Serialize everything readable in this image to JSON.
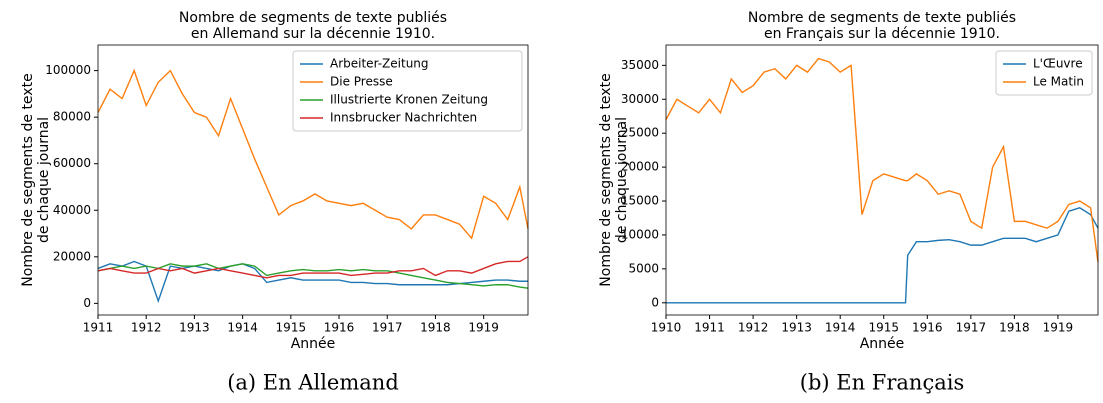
{
  "chart_data": [
    {
      "type": "line",
      "title": [
        "Nombre de segments de texte publiés",
        "en Allemand sur la décennie 1910."
      ],
      "xlabel": "Année",
      "ylabel": [
        "Nombre de segments de texte",
        "de chaque journal"
      ],
      "caption": "(a)  En Allemand",
      "x": [
        1911,
        1911.25,
        1911.5,
        1911.75,
        1912,
        1912.25,
        1912.5,
        1912.75,
        1913,
        1913.25,
        1913.5,
        1913.75,
        1914,
        1914.25,
        1914.5,
        1914.75,
        1915,
        1915.25,
        1915.5,
        1915.75,
        1916,
        1916.25,
        1916.5,
        1916.75,
        1917,
        1917.25,
        1917.5,
        1917.75,
        1918,
        1918.25,
        1918.5,
        1918.75,
        1919,
        1919.25,
        1919.5,
        1919.75,
        1919.92
      ],
      "series": [
        {
          "name": "Arbeiter-Zeitung",
          "color": "#1f77b4",
          "values": [
            15000,
            17000,
            16000,
            18000,
            16000,
            1000,
            16000,
            15000,
            16000,
            15000,
            14000,
            16000,
            17000,
            15000,
            9000,
            10000,
            11000,
            10000,
            10000,
            10000,
            10000,
            9000,
            9000,
            8500,
            8500,
            8000,
            8000,
            8000,
            8000,
            8000,
            8500,
            9000,
            9500,
            10000,
            10000,
            9500,
            9500
          ]
        },
        {
          "name": "Die Presse",
          "color": "#ff7f0e",
          "values": [
            82000,
            92000,
            88000,
            100000,
            85000,
            95000,
            100000,
            90000,
            82000,
            80000,
            72000,
            88000,
            75000,
            62000,
            50000,
            38000,
            42000,
            44000,
            47000,
            44000,
            43000,
            42000,
            43000,
            40000,
            37000,
            36000,
            32000,
            38000,
            38000,
            36000,
            34000,
            28000,
            46000,
            43000,
            36000,
            50000,
            32000
          ]
        },
        {
          "name": "Illustrierte Kronen Zeitung",
          "color": "#2ca02c",
          "values": [
            14000,
            15000,
            16000,
            15000,
            16000,
            15000,
            17000,
            16000,
            16000,
            17000,
            15000,
            16000,
            17000,
            16000,
            12000,
            13000,
            14000,
            14500,
            14000,
            14000,
            14500,
            14000,
            14500,
            14000,
            14000,
            13000,
            12000,
            11000,
            10000,
            9000,
            8500,
            8000,
            7500,
            8000,
            8000,
            7000,
            6500
          ]
        },
        {
          "name": "Innsbrucker Nachrichten",
          "color": "#d62728",
          "values": [
            14000,
            15000,
            14000,
            13000,
            13000,
            15000,
            14000,
            15000,
            13000,
            14000,
            15000,
            14000,
            13000,
            12000,
            11000,
            12000,
            12000,
            13000,
            13000,
            13000,
            13000,
            12000,
            12500,
            13000,
            13000,
            14000,
            14000,
            15000,
            12000,
            14000,
            14000,
            13000,
            15000,
            17000,
            18000,
            18000,
            20000
          ]
        }
      ],
      "xlim": [
        1911,
        1919.92
      ],
      "xticks": [
        1911,
        1912,
        1913,
        1914,
        1915,
        1916,
        1917,
        1918,
        1919
      ],
      "ylim": [
        -5000,
        111000
      ],
      "yticks": [
        0,
        20000,
        40000,
        60000,
        80000,
        100000
      ],
      "legend": "upper right",
      "grid": false
    },
    {
      "type": "line",
      "title": [
        "Nombre de segments de texte publiés",
        "en Français sur la décennie 1910."
      ],
      "xlabel": "Année",
      "ylabel": [
        "Nombre de segments de texte",
        "de chaque journal"
      ],
      "caption": "(b)  En Français",
      "x": [
        1910,
        1910.25,
        1910.5,
        1910.75,
        1911,
        1911.25,
        1911.5,
        1911.75,
        1912,
        1912.25,
        1912.5,
        1912.75,
        1913,
        1913.25,
        1913.5,
        1913.75,
        1914,
        1914.25,
        1914.5,
        1914.75,
        1915,
        1915.25,
        1915.5,
        1915.55,
        1915.75,
        1916,
        1916.25,
        1916.5,
        1916.75,
        1917,
        1917.25,
        1917.5,
        1917.75,
        1918,
        1918.25,
        1918.5,
        1918.75,
        1919,
        1919.25,
        1919.5,
        1919.75,
        1919.92
      ],
      "series": [
        {
          "name": "L'Œuvre",
          "color": "#1f77b4",
          "values": [
            0,
            0,
            0,
            0,
            0,
            0,
            0,
            0,
            0,
            0,
            0,
            0,
            0,
            0,
            0,
            0,
            0,
            0,
            0,
            0,
            0,
            0,
            0,
            7000,
            9000,
            9000,
            9200,
            9300,
            9000,
            8500,
            8500,
            9000,
            9500,
            9500,
            9500,
            9000,
            9500,
            10000,
            13500,
            14000,
            13000,
            11000
          ]
        },
        {
          "name": "Le Matin",
          "color": "#ff7f0e",
          "values": [
            27000,
            30000,
            29000,
            28000,
            30000,
            28000,
            33000,
            31000,
            32000,
            34000,
            34500,
            33000,
            35000,
            34000,
            36000,
            35500,
            34000,
            35000,
            13000,
            18000,
            19000,
            18500,
            18000,
            18000,
            19000,
            18000,
            16000,
            16500,
            16000,
            12000,
            11000,
            20000,
            23000,
            12000,
            12000,
            11500,
            11000,
            12000,
            14500,
            15000,
            14000,
            6000
          ]
        }
      ],
      "xlim": [
        1910,
        1919.92
      ],
      "xticks": [
        1910,
        1911,
        1912,
        1913,
        1914,
        1915,
        1916,
        1917,
        1918,
        1919
      ],
      "ylim": [
        -1800,
        38000
      ],
      "yticks": [
        0,
        5000,
        10000,
        15000,
        20000,
        25000,
        30000,
        35000
      ],
      "legend": "upper right",
      "grid": false
    }
  ]
}
